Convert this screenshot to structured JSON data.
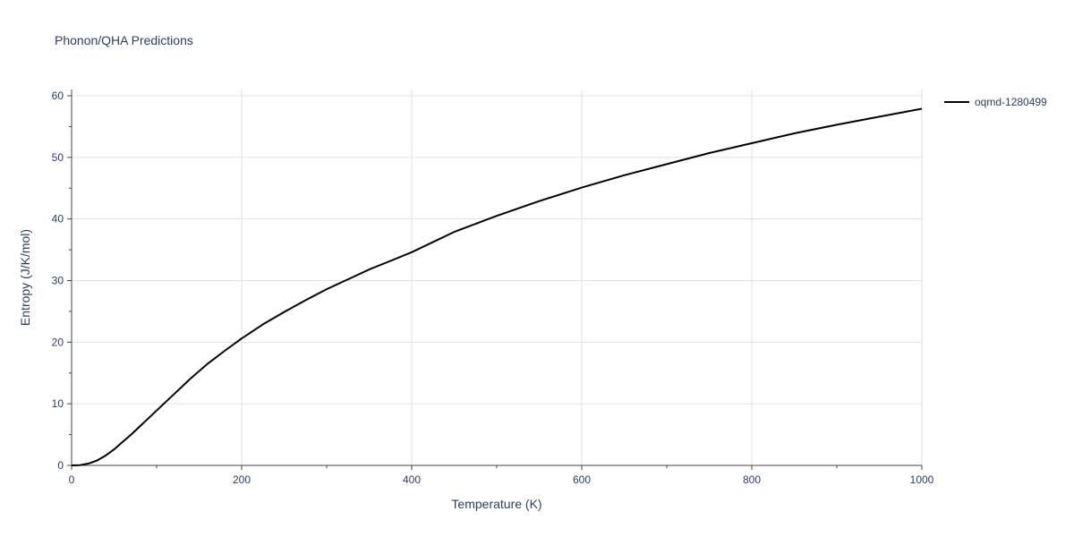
{
  "chart_data": {
    "type": "line",
    "title": "Phonon/QHA Predictions",
    "xlabel": "Temperature (K)",
    "ylabel": "Entropy (J/K/mol)",
    "xlim": [
      0,
      1000
    ],
    "ylim": [
      0,
      60
    ],
    "x_ticks": [
      0,
      200,
      400,
      600,
      800,
      1000
    ],
    "y_ticks": [
      0,
      10,
      20,
      30,
      40,
      50,
      60
    ],
    "grid": true,
    "legend_position": "top-right",
    "series": [
      {
        "name": "oqmd-1280499",
        "color": "#000000",
        "x": [
          0,
          10,
          20,
          30,
          40,
          50,
          60,
          70,
          80,
          90,
          100,
          120,
          140,
          160,
          180,
          200,
          225,
          250,
          275,
          300,
          325,
          350,
          375,
          400,
          450,
          500,
          550,
          600,
          650,
          700,
          750,
          800,
          850,
          900,
          950,
          1000
        ],
        "y": [
          0,
          0.05,
          0.3,
          0.8,
          1.6,
          2.6,
          3.8,
          5.0,
          6.3,
          7.6,
          8.9,
          11.5,
          14.1,
          16.5,
          18.6,
          20.6,
          22.9,
          24.9,
          26.8,
          28.6,
          30.2,
          31.8,
          33.2,
          34.6,
          37.9,
          40.5,
          42.9,
          45.1,
          47.1,
          48.9,
          50.7,
          52.3,
          53.9,
          55.3,
          56.6,
          57.9
        ]
      }
    ]
  }
}
